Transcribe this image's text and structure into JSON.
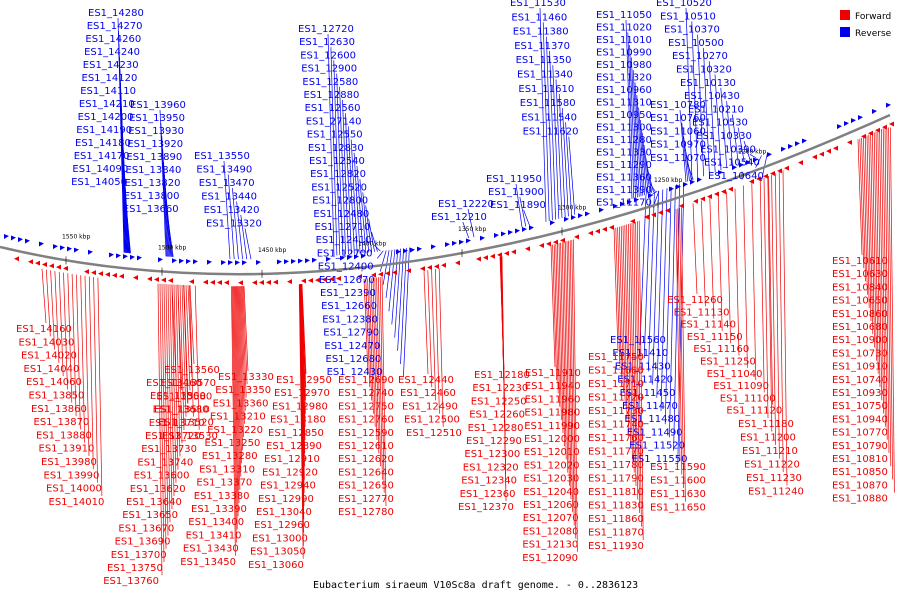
{
  "caption": "Eubacterium siraeum V10Sc8a draft genome. - 0..2836123",
  "legend": [
    {
      "label": "Forward",
      "color": "#ee0000"
    },
    {
      "label": "Reverse",
      "color": "#0000ee"
    }
  ],
  "colors": {
    "forward": "#ee0000",
    "reverse": "#0000ee",
    "backbone": "#808080"
  },
  "ticks": [
    "1200 kbp",
    "1250 kbp",
    "1300 kbp",
    "1350 kbp",
    "1400 kbp",
    "1450 kbp",
    "1500 kbp",
    "1550 kbp"
  ],
  "reverse_labels": [
    "ES1_14280",
    "ES1_14270",
    "ES1_14260",
    "ES1_14240",
    "ES1_14230",
    "ES1_14120",
    "ES1_14110",
    "ES1_14210",
    "ES1_14200",
    "ES1_14190",
    "ES1_14180",
    "ES1_14170",
    "ES1_14090",
    "ES1_14050",
    "ES1_13960",
    "ES1_13950",
    "ES1_13930",
    "ES1_13920",
    "ES1_13890",
    "ES1_13840",
    "ES1_13820",
    "ES1_13800",
    "ES1_13660",
    "ES1_13550",
    "ES1_13490",
    "ES1_13470",
    "ES1_13440",
    "ES1_13420",
    "ES1_13320",
    "ES1_12720",
    "ES1_12630",
    "ES1_12600",
    "ES1_12900",
    "ES1_12580",
    "ES1_12880",
    "ES1_12560",
    "ES1_27140",
    "ES1_12550",
    "ES1_12830",
    "ES1_12540",
    "ES1_12820",
    "ES1_12520",
    "ES1_12800",
    "ES1_12480",
    "ES1_12710",
    "ES1_12410",
    "ES1_12700",
    "ES1_12400",
    "ES1_12670",
    "ES1_12390",
    "ES1_12660",
    "ES1_12380",
    "ES1_12790",
    "ES1_12470",
    "ES1_12680",
    "ES1_12430",
    "ES1_12220",
    "ES1_12210",
    "ES1_11950",
    "ES1_11900",
    "ES1_11890",
    "ES1_11530",
    "ES1_11460",
    "ES1_11380",
    "ES1_11370",
    "ES1_11350",
    "ES1_11340",
    "ES1_11610",
    "ES1_11580",
    "ES1_11540",
    "ES1_11620",
    "ES1_11050",
    "ES1_11020",
    "ES1_11010",
    "ES1_10990",
    "ES1_10980",
    "ES1_11320",
    "ES1_10960",
    "ES1_11310",
    "ES1_10950",
    "ES1_11300",
    "ES1_11280",
    "ES1_11330",
    "ES1_11290",
    "ES1_11360",
    "ES1_11390",
    "ES1_11170",
    "ES1_10780",
    "ES1_10760",
    "ES1_11060",
    "ES1_10970",
    "ES1_11070",
    "ES1_10520",
    "ES1_10510",
    "ES1_10370",
    "ES1_10500",
    "ES1_10270",
    "ES1_10320",
    "ES1_10130",
    "ES1_10430",
    "ES1_10210",
    "ES1_10530",
    "ES1_10330",
    "ES1_10390",
    "ES1_10540",
    "ES1_10640",
    "ES1_11560",
    "ES1_11410",
    "ES1_11430",
    "ES1_11420",
    "ES1_11450",
    "ES1_11470",
    "ES1_11480",
    "ES1_11490",
    "ES1_11520",
    "ES1_11550"
  ],
  "forward_labels": [
    "ES1_14160",
    "ES1_14030",
    "ES1_14020",
    "ES1_14040",
    "ES1_14060",
    "ES1_13850",
    "ES1_13860",
    "ES1_13870",
    "ES1_13880",
    "ES1_13910",
    "ES1_13980",
    "ES1_13990",
    "ES1_14000",
    "ES1_14010",
    "ES1_13560",
    "ES1_13570",
    "ES1_13580",
    "ES1_13680",
    "ES1_13710",
    "ES1_13720",
    "ES1_13730",
    "ES1_13740",
    "ES1_13600",
    "ES1_13620",
    "ES1_13640",
    "ES1_13650",
    "ES1_13670",
    "ES1_13690",
    "ES1_13700",
    "ES1_13750",
    "ES1_13760",
    "ES1_13460",
    "ES1_13500",
    "ES1_13510",
    "ES1_13520",
    "ES1_13530",
    "ES1_13330",
    "ES1_13350",
    "ES1_13360",
    "ES1_13210",
    "ES1_13220",
    "ES1_13250",
    "ES1_13280",
    "ES1_13310",
    "ES1_13370",
    "ES1_13380",
    "ES1_13390",
    "ES1_13400",
    "ES1_13410",
    "ES1_13430",
    "ES1_13450",
    "ES1_12950",
    "ES1_12970",
    "ES1_12980",
    "ES1_13180",
    "ES1_12850",
    "ES1_12890",
    "ES1_12910",
    "ES1_12920",
    "ES1_12940",
    "ES1_12990",
    "ES1_13040",
    "ES1_12960",
    "ES1_13000",
    "ES1_13050",
    "ES1_13060",
    "ES1_12690",
    "ES1_12740",
    "ES1_12750",
    "ES1_12760",
    "ES1_12590",
    "ES1_12610",
    "ES1_12620",
    "ES1_12640",
    "ES1_12650",
    "ES1_12770",
    "ES1_12780",
    "ES1_12440",
    "ES1_12460",
    "ES1_12490",
    "ES1_12500",
    "ES1_12510",
    "ES1_12180",
    "ES1_12230",
    "ES1_12250",
    "ES1_12260",
    "ES1_12280",
    "ES1_12290",
    "ES1_12300",
    "ES1_12320",
    "ES1_12340",
    "ES1_12360",
    "ES1_12370",
    "ES1_11910",
    "ES1_11940",
    "ES1_11960",
    "ES1_11980",
    "ES1_11990",
    "ES1_12000",
    "ES1_12010",
    "ES1_12020",
    "ES1_12030",
    "ES1_12040",
    "ES1_12060",
    "ES1_12070",
    "ES1_12080",
    "ES1_12130",
    "ES1_12090",
    "ES1_11750",
    "ES1_11680",
    "ES1_11710",
    "ES1_11720",
    "ES1_11730",
    "ES1_11740",
    "ES1_11760",
    "ES1_11770",
    "ES1_11780",
    "ES1_11790",
    "ES1_11810",
    "ES1_11830",
    "ES1_11860",
    "ES1_11870",
    "ES1_11930",
    "ES1_11590",
    "ES1_11600",
    "ES1_11630",
    "ES1_11650",
    "ES1_11260",
    "ES1_11130",
    "ES1_11140",
    "ES1_11150",
    "ES1_11160",
    "ES1_11250",
    "ES1_11040",
    "ES1_11090",
    "ES1_11100",
    "ES1_11120",
    "ES1_11180",
    "ES1_11200",
    "ES1_11210",
    "ES1_11220",
    "ES1_11230",
    "ES1_11240",
    "ES1_10610",
    "ES1_10630",
    "ES1_10840",
    "ES1_10650",
    "ES1_10860",
    "ES1_10680",
    "ES1_10900",
    "ES1_10730",
    "ES1_10910",
    "ES1_10740",
    "ES1_10930",
    "ES1_10750",
    "ES1_10940",
    "ES1_10770",
    "ES1_10790",
    "ES1_10810",
    "ES1_10850",
    "ES1_10870",
    "ES1_10880"
  ]
}
